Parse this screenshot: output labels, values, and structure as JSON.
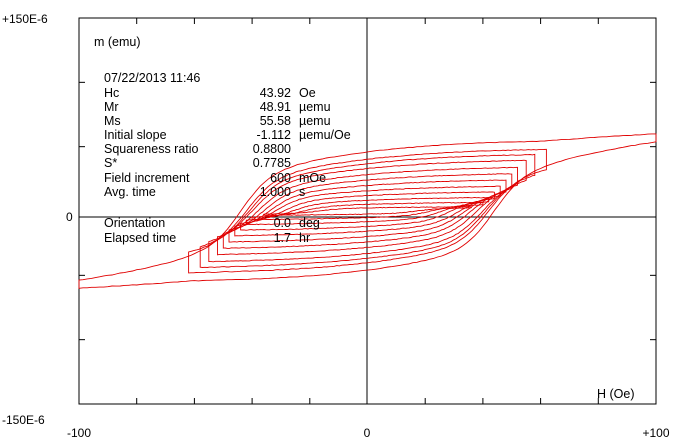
{
  "chart_data": {
    "type": "line",
    "title": "",
    "xlabel": "H (Oe)",
    "ylabel": "m (emu)",
    "xlim": [
      -100,
      100
    ],
    "ylim": [
      -0.00015,
      0.00015
    ],
    "x_tick_labels": [
      "-100",
      "0",
      "+100"
    ],
    "y_tick_labels": [
      "+150E-6",
      "0",
      "-150E-6"
    ],
    "x_minor_ticks": [
      -80,
      -60,
      -40,
      -20,
      20,
      40,
      60,
      80
    ],
    "y_minor_ticks": [
      -0.0001,
      -5e-05,
      5e-05,
      0.0001
    ],
    "grid": false,
    "zero_lines": true,
    "line_color": "#e00000",
    "timestamp": "07/22/2013  11:46",
    "annotations": [
      {
        "label": "Hc",
        "value": "43.92",
        "unit": "Oe"
      },
      {
        "label": "Mr",
        "value": "48.91",
        "unit": "µemu"
      },
      {
        "label": "Ms",
        "value": "55.58",
        "unit": "µemu"
      },
      {
        "label": "Initial slope",
        "value": "-1.112",
        "unit": "µemu/Oe"
      },
      {
        "label": "Squareness ratio",
        "value": "0.8800",
        "unit": ""
      },
      {
        "label": "S*",
        "value": "0.7785",
        "unit": ""
      },
      {
        "label": "Field increment",
        "value": "600",
        "unit": "mOe"
      },
      {
        "label": "Avg. time",
        "value": "1.000",
        "unit": "s"
      },
      {
        "label": "Orientation",
        "value": "0.0",
        "unit": "deg"
      },
      {
        "label": "Elapsed time",
        "value": "1.7",
        "unit": "hr"
      }
    ],
    "series": [
      {
        "ms": 5.558e-05,
        "mr": 4.891e-05,
        "hc": 43.92,
        "h_max": 100,
        "x_min": -100
      },
      {
        "ms": 4.9e-05,
        "mr": 4.6e-05,
        "hc": 42,
        "h_max": 62
      },
      {
        "ms": 4.5e-05,
        "mr": 4.3e-05,
        "hc": 41,
        "h_max": 58
      },
      {
        "ms": 4.05e-05,
        "mr": 3.85e-05,
        "hc": 40,
        "h_max": 55
      },
      {
        "ms": 3.5e-05,
        "mr": 3.3e-05,
        "hc": 38,
        "h_max": 52
      },
      {
        "ms": 3e-05,
        "mr": 2.8e-05,
        "hc": 36,
        "h_max": 50
      },
      {
        "ms": 2.5e-05,
        "mr": 2.3e-05,
        "hc": 34,
        "h_max": 48
      },
      {
        "ms": 2e-05,
        "mr": 1.8e-05,
        "hc": 32,
        "h_max": 46
      },
      {
        "ms": 1.55e-05,
        "mr": 1.35e-05,
        "hc": 29,
        "h_max": 44
      },
      {
        "ms": 1.1e-05,
        "mr": 9e-06,
        "hc": 26,
        "h_max": 42
      },
      {
        "ms": 7e-06,
        "mr": 5e-06,
        "hc": 22,
        "h_max": 40
      },
      {
        "ms": 3.5e-06,
        "mr": 2e-06,
        "hc": 17,
        "h_max": 36
      }
    ]
  }
}
